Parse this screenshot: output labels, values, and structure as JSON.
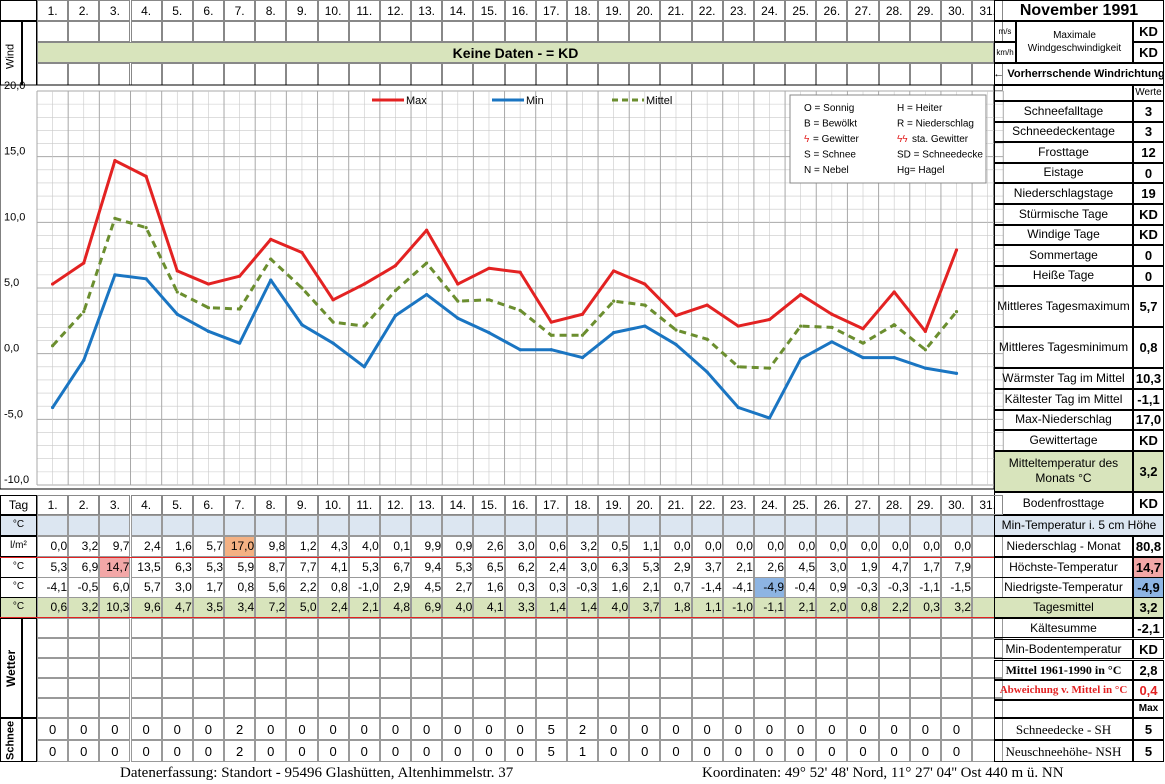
{
  "header": {
    "month_title": "November 1991",
    "days": [
      "1.",
      "2.",
      "3.",
      "4.",
      "5.",
      "6.",
      "7.",
      "8.",
      "9.",
      "10.",
      "11.",
      "12.",
      "13.",
      "14.",
      "15.",
      "16.",
      "17.",
      "18.",
      "19.",
      "20.",
      "21.",
      "22.",
      "23.",
      "24.",
      "25.",
      "26.",
      "27.",
      "28.",
      "29.",
      "30.",
      "31."
    ],
    "tag_label": "Tag"
  },
  "wind": {
    "label": "Wind",
    "no_data_text": "Keine Daten -  = KD",
    "unit_ms": "m/s",
    "unit_kmh": "km/h",
    "max_label_1": "Maximale",
    "max_label_2": "Windgeschwindigkeit",
    "max_ms": "KD",
    "max_kmh": "KD",
    "direction_label": "← Vorherrschende Windrichtung"
  },
  "chart_data": {
    "type": "line",
    "x": [
      1,
      2,
      3,
      4,
      5,
      6,
      7,
      8,
      9,
      10,
      11,
      12,
      13,
      14,
      15,
      16,
      17,
      18,
      19,
      20,
      21,
      22,
      23,
      24,
      25,
      26,
      27,
      28,
      29,
      30
    ],
    "ylim": [
      -10,
      20
    ],
    "yticks": [
      "20,0",
      "15,0",
      "10,0",
      "5,0",
      "0,0",
      "-5,0",
      "-10,0"
    ],
    "grid": true,
    "legend_position": "top",
    "series": [
      {
        "name": "Max",
        "color": "#e32222",
        "dash": false,
        "values": [
          5.3,
          6.9,
          14.7,
          13.5,
          6.3,
          5.3,
          5.9,
          8.7,
          7.7,
          4.1,
          5.3,
          6.7,
          9.4,
          5.3,
          6.5,
          6.2,
          2.4,
          3.0,
          6.3,
          5.3,
          2.9,
          3.7,
          2.1,
          2.6,
          4.5,
          3.0,
          1.9,
          4.7,
          1.7,
          7.9
        ]
      },
      {
        "name": "Min",
        "color": "#1a75c2",
        "dash": false,
        "values": [
          -4.1,
          -0.5,
          6.0,
          5.7,
          3.0,
          1.7,
          0.8,
          5.6,
          2.2,
          0.8,
          -1.0,
          2.9,
          4.5,
          2.7,
          1.6,
          0.3,
          0.3,
          -0.3,
          1.6,
          2.1,
          0.7,
          -1.4,
          -4.1,
          -4.9,
          -0.4,
          0.9,
          -0.3,
          -0.3,
          -1.1,
          -1.5
        ]
      },
      {
        "name": "Mittel",
        "color": "#6b8e2f",
        "dash": true,
        "values": [
          0.6,
          3.2,
          10.3,
          9.6,
          4.7,
          3.5,
          3.4,
          7.2,
          5.0,
          2.4,
          2.1,
          4.8,
          6.9,
          4.0,
          4.1,
          3.3,
          1.4,
          1.4,
          4.0,
          3.7,
          1.8,
          1.1,
          -1.0,
          -1.1,
          2.1,
          2.0,
          0.8,
          2.2,
          0.3,
          3.2
        ]
      }
    ]
  },
  "code_legend": [
    [
      "O = Sonnig",
      "H = Heiter"
    ],
    [
      "B = Bewölkt",
      "R = Niederschlag"
    ],
    [
      "= Gewitter",
      "sta. Gewitter"
    ],
    [
      "S = Schnee",
      "SD = Schneedecke"
    ],
    [
      "N = Nebel",
      "Hg= Hagel"
    ]
  ],
  "stats": {
    "werte_header": "Werte",
    "rows": [
      {
        "label": "Schneefalltage",
        "value": "3"
      },
      {
        "label": "Schneedeckentage",
        "value": "3"
      },
      {
        "label": "Frosttage",
        "value": "12"
      },
      {
        "label": "Eistage",
        "value": "0"
      },
      {
        "label": "Niederschlagstage",
        "value": "19"
      },
      {
        "label": "Stürmische Tage",
        "value": "KD"
      },
      {
        "label": "Windige Tage",
        "value": "KD"
      },
      {
        "label": "Sommertage",
        "value": "0"
      },
      {
        "label": "Heiße Tage",
        "value": "0"
      },
      {
        "label": "Mittleres Tagesmaximum",
        "value": "5,7"
      },
      {
        "label": "Mittleres Tagesminimum",
        "value": "0,8"
      },
      {
        "label": "Wärmster Tag im Mittel",
        "value": "10,3"
      },
      {
        "label": "Kältester Tag im Mittel",
        "value": "-1,1"
      },
      {
        "label": "Max-Niederschlag",
        "value": "17,0"
      },
      {
        "label": "Gewittertage",
        "value": "KD"
      },
      {
        "label": "Mitteltemperatur des Monats °C",
        "value": "3,2"
      },
      {
        "label": "Bodenfrosttage",
        "value": "KD"
      }
    ]
  },
  "table": {
    "rows": [
      {
        "unit": "°C",
        "label": "Min-Temperatur i. 5 cm Höhe",
        "value": "",
        "cells": [
          "",
          "",
          "",
          "",
          "",
          "",
          "",
          "",
          "",
          "",
          "",
          "",
          "",
          "",
          "",
          "",
          "",
          "",
          "",
          "",
          "",
          "",
          "",
          "",
          "",
          "",
          "",
          "",
          "",
          "",
          ""
        ]
      },
      {
        "unit": "l/m²",
        "label": "Niederschlag - Monat",
        "value": "80,8",
        "cells": [
          "0,0",
          "3,2",
          "9,7",
          "2,4",
          "1,6",
          "5,7",
          "17,0",
          "9,8",
          "1,2",
          "4,3",
          "4,0",
          "0,1",
          "9,9",
          "0,9",
          "2,6",
          "3,0",
          "0,6",
          "3,2",
          "0,5",
          "1,1",
          "0,0",
          "0,0",
          "0,0",
          "0,0",
          "0,0",
          "0,0",
          "0,0",
          "0,0",
          "0,0",
          "0,0",
          ""
        ]
      },
      {
        "unit": "°C",
        "label": "Höchste-Temperatur",
        "value": "14,7",
        "cells": [
          "5,3",
          "6,9",
          "14,7",
          "13,5",
          "6,3",
          "5,3",
          "5,9",
          "8,7",
          "7,7",
          "4,1",
          "5,3",
          "6,7",
          "9,4",
          "5,3",
          "6,5",
          "6,2",
          "2,4",
          "3,0",
          "6,3",
          "5,3",
          "2,9",
          "3,7",
          "2,1",
          "2,6",
          "4,5",
          "3,0",
          "1,9",
          "4,7",
          "1,7",
          "7,9",
          ""
        ]
      },
      {
        "unit": "°C",
        "label": "Niedrigste-Temperatur",
        "value": "-4,9",
        "cells": [
          "-4,1",
          "-0,5",
          "6,0",
          "5,7",
          "3,0",
          "1,7",
          "0,8",
          "5,6",
          "2,2",
          "0,8",
          "-1,0",
          "2,9",
          "4,5",
          "2,7",
          "1,6",
          "0,3",
          "0,3",
          "-0,3",
          "1,6",
          "2,1",
          "0,7",
          "-1,4",
          "-4,1",
          "-4,9",
          "-0,4",
          "0,9",
          "-0,3",
          "-0,3",
          "-1,1",
          "-1,5",
          ""
        ]
      },
      {
        "unit": "°C",
        "label": "Tagesmittel",
        "value": "3,2",
        "cells": [
          "0,6",
          "3,2",
          "10,3",
          "9,6",
          "4,7",
          "3,5",
          "3,4",
          "7,2",
          "5,0",
          "2,4",
          "2,1",
          "4,8",
          "6,9",
          "4,0",
          "4,1",
          "3,3",
          "1,4",
          "1,4",
          "4,0",
          "3,7",
          "1,8",
          "1,1",
          "-1,0",
          "-1,1",
          "2,1",
          "2,0",
          "0,8",
          "2,2",
          "0,3",
          "3,2",
          ""
        ]
      }
    ],
    "extra_rows": [
      {
        "label": "Kältesumme",
        "value": "-2,1"
      },
      {
        "label": "Min-Bodentemperatur",
        "value": "KD"
      },
      {
        "label": "Mittel 1961-1990 in °C",
        "value": "2,8"
      },
      {
        "label": "Abweichung v. Mittel in °C",
        "value": "0,4"
      }
    ],
    "wetter_label": "Wetter",
    "schnee_label": "Schnee",
    "max_label": "Max",
    "snow_rows": [
      {
        "label": "Schneedecke -   SH",
        "value": "5",
        "cells": [
          "0",
          "0",
          "0",
          "0",
          "0",
          "0",
          "2",
          "0",
          "0",
          "0",
          "0",
          "0",
          "0",
          "0",
          "0",
          "0",
          "5",
          "2",
          "0",
          "0",
          "0",
          "0",
          "0",
          "0",
          "0",
          "0",
          "0",
          "0",
          "0",
          "0",
          ""
        ]
      },
      {
        "label": "Neuschneehöhe- NSH",
        "value": "5",
        "cells": [
          "0",
          "0",
          "0",
          "0",
          "0",
          "0",
          "2",
          "0",
          "0",
          "0",
          "0",
          "0",
          "0",
          "0",
          "0",
          "0",
          "5",
          "1",
          "0",
          "0",
          "0",
          "0",
          "0",
          "0",
          "0",
          "0",
          "0",
          "0",
          "0",
          "0",
          ""
        ]
      }
    ]
  },
  "footer": {
    "location": "Datenerfassung:  Standort -   95496  Glashütten, Altenhimmelstr. 37",
    "coordinates": "Koordinaten:  49° 52' 48' Nord,  11° 27' 04'' Ost   440 m ü. NN"
  },
  "colors": {
    "band_green": "#d8e4bc",
    "band_blue": "#dce6f1",
    "highlight_red": "#f2a7a7",
    "highlight_orange": "#f4b183",
    "highlight_blue": "#8db4e2",
    "grid": "#c9c9c9"
  }
}
